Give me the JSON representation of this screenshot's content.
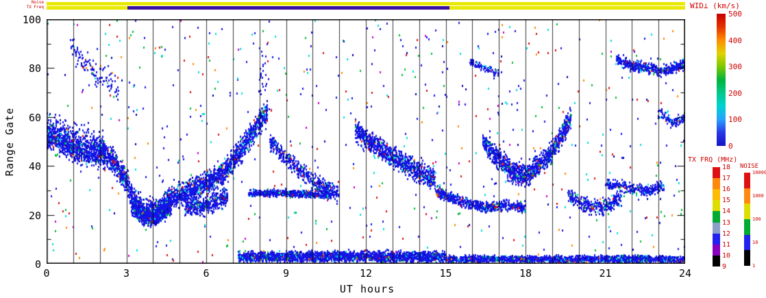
{
  "chart_data": {
    "type": "scatter",
    "title": "",
    "xlabel": "UT hours",
    "ylabel": "Range Gate",
    "xlim": [
      0,
      24
    ],
    "ylim": [
      0,
      100
    ],
    "x_ticks": [
      "0",
      "3",
      "6",
      "9",
      "12",
      "15",
      "18",
      "21",
      "24"
    ],
    "x_minor_gridline_every_hours": 1,
    "y_ticks": [
      "0",
      "20",
      "40",
      "60",
      "80",
      "100"
    ],
    "gridlines": "vertical black line at every UT hour, full plot height",
    "strips": {
      "noise_label": "Noise",
      "txfreq_label": "TX Freq",
      "noise_segments": [
        {
          "from": 0,
          "to": 24,
          "color": "#e8e800"
        }
      ],
      "txfreq_segments": [
        {
          "from": 0,
          "to": 3.05,
          "color": "#e8e800"
        },
        {
          "from": 3.05,
          "to": 15.15,
          "color": "#3a10a0"
        },
        {
          "from": 15.15,
          "to": 24,
          "color": "#e8e800"
        }
      ]
    },
    "colorbars": {
      "wid": {
        "title": "WID⊥ (km/s)",
        "ticks_top_to_bottom": [
          "500",
          "400",
          "300",
          "200",
          "100",
          "0"
        ],
        "gradient_top_to_bottom": [
          "#c80000",
          "#e43200",
          "#ff8c00",
          "#e1d200",
          "#7dc800",
          "#00b43c",
          "#00c88c",
          "#00d2d2",
          "#28a0ff",
          "#2837e6",
          "#1414c8"
        ]
      },
      "txfrq": {
        "title": "TX FRQ (MHz)",
        "ticks_top_to_bottom": [
          "18",
          "17",
          "16",
          "15",
          "14",
          "13",
          "12",
          "11",
          "10",
          "9"
        ],
        "segments_top_to_bottom": [
          "#dd1111",
          "#ff8811",
          "#ffbb00",
          "#dddd00",
          "#00aa33",
          "#8aa0c8",
          "#2222ee",
          "#8800bb",
          "#000000"
        ]
      },
      "noise": {
        "title": "NOISE",
        "ticks_top_to_bottom": [
          "10000",
          "1000",
          "100",
          "10",
          "1"
        ],
        "segments_top_to_bottom": [
          "#dd1111",
          "#ff8811",
          "#dddd00",
          "#00aa33",
          "#2222ee",
          "#000000"
        ]
      }
    },
    "point_color_weights": {
      "band": [
        {
          "color": "#1515e6",
          "w": 0.84
        },
        {
          "color": "#0000aa",
          "w": 0.05
        },
        {
          "color": "#00dddd",
          "w": 0.05
        },
        {
          "color": "#00bb33",
          "w": 0.03
        },
        {
          "color": "#dd1111",
          "w": 0.02
        },
        {
          "color": "#ff8800",
          "w": 0.01
        }
      ],
      "noise": [
        {
          "color": "#1515e6",
          "w": 0.38
        },
        {
          "color": "#00dddd",
          "w": 0.17
        },
        {
          "color": "#00bb33",
          "w": 0.13
        },
        {
          "color": "#dd1111",
          "w": 0.13
        },
        {
          "color": "#ff8800",
          "w": 0.07
        },
        {
          "color": "#0000aa",
          "w": 0.07
        },
        {
          "color": "#cc00cc",
          "w": 0.05
        }
      ]
    },
    "bands": [
      {
        "id": "early-wave",
        "points": [
          [
            0.0,
            52
          ],
          [
            0.5,
            50
          ],
          [
            1.0,
            47
          ],
          [
            1.5,
            45
          ],
          [
            2.0,
            46
          ],
          [
            2.5,
            42
          ],
          [
            3.0,
            34
          ],
          [
            3.3,
            26
          ],
          [
            3.7,
            21
          ],
          [
            4.2,
            22
          ],
          [
            4.7,
            27
          ],
          [
            5.2,
            29
          ],
          [
            5.7,
            31
          ],
          [
            6.2,
            34
          ],
          [
            6.7,
            38
          ],
          [
            7.2,
            45
          ],
          [
            7.7,
            53
          ],
          [
            8.1,
            59
          ],
          [
            8.3,
            62
          ]
        ],
        "half_width": 7,
        "density": 30
      },
      {
        "id": "early-thick",
        "points": [
          [
            0.0,
            55
          ],
          [
            0.7,
            52
          ],
          [
            1.5,
            49
          ],
          [
            2.2,
            46
          ]
        ],
        "half_width": 10,
        "density": 14
      },
      {
        "id": "dip-blob-4h",
        "points": [
          [
            3.2,
            24
          ],
          [
            3.6,
            20
          ],
          [
            4.0,
            19
          ],
          [
            4.4,
            21
          ],
          [
            4.7,
            24
          ]
        ],
        "half_width": 5,
        "density": 42
      },
      {
        "id": "low-blob-6h",
        "points": [
          [
            5.2,
            24
          ],
          [
            5.8,
            23
          ],
          [
            6.3,
            25
          ],
          [
            6.8,
            28
          ]
        ],
        "half_width": 5,
        "density": 22
      },
      {
        "id": "high-early",
        "points": [
          [
            0.9,
            90
          ],
          [
            1.5,
            81
          ],
          [
            2.1,
            76
          ],
          [
            2.7,
            72
          ]
        ],
        "half_width": 7,
        "density": 5
      },
      {
        "id": "column-8h",
        "points": [
          [
            8.0,
            75
          ],
          [
            8.3,
            80
          ]
        ],
        "half_width": 18,
        "density": 6
      },
      {
        "id": "desc-9h",
        "points": [
          [
            8.4,
            50
          ],
          [
            9.0,
            43
          ],
          [
            9.5,
            39
          ],
          [
            10.0,
            34
          ],
          [
            10.5,
            31
          ],
          [
            11.0,
            28
          ]
        ],
        "half_width": 5,
        "density": 15
      },
      {
        "id": "flat-28",
        "points": [
          [
            7.6,
            29
          ],
          [
            9.0,
            29
          ],
          [
            10.7,
            28
          ]
        ],
        "half_width": 2,
        "density": 18
      },
      {
        "id": "bottom-mid",
        "points": [
          [
            7.2,
            3
          ],
          [
            11.0,
            3
          ],
          [
            15.0,
            3
          ]
        ],
        "half_width": 3,
        "density": 26
      },
      {
        "id": "bottom-late",
        "points": [
          [
            15.0,
            2
          ],
          [
            20.0,
            2
          ],
          [
            24.0,
            2
          ]
        ],
        "half_width": 2,
        "density": 16
      },
      {
        "id": "desc-13h",
        "points": [
          [
            11.6,
            55
          ],
          [
            12.1,
            50
          ],
          [
            12.6,
            47
          ],
          [
            13.1,
            43
          ],
          [
            13.6,
            40
          ],
          [
            14.1,
            37
          ],
          [
            14.6,
            34
          ]
        ],
        "half_width": 6,
        "density": 26
      },
      {
        "id": "mid-16h",
        "points": [
          [
            14.6,
            30
          ],
          [
            15.2,
            27
          ],
          [
            15.8,
            25
          ],
          [
            16.5,
            23
          ],
          [
            17.2,
            24
          ],
          [
            18.0,
            23
          ]
        ],
        "half_width": 3,
        "density": 15
      },
      {
        "id": "vee-18h",
        "points": [
          [
            16.4,
            50
          ],
          [
            17.0,
            43
          ],
          [
            17.5,
            38
          ],
          [
            18.0,
            36
          ],
          [
            18.5,
            40
          ],
          [
            19.0,
            46
          ],
          [
            19.4,
            53
          ],
          [
            19.7,
            60
          ]
        ],
        "half_width": 6,
        "density": 28
      },
      {
        "id": "low-20h",
        "points": [
          [
            19.6,
            28
          ],
          [
            20.1,
            25
          ],
          [
            20.6,
            23
          ],
          [
            21.1,
            24
          ],
          [
            21.6,
            27
          ]
        ],
        "half_width": 4,
        "density": 13
      },
      {
        "id": "flat-22h",
        "points": [
          [
            21.0,
            33
          ],
          [
            22.0,
            31
          ],
          [
            22.6,
            30
          ],
          [
            23.2,
            32
          ]
        ],
        "half_width": 3,
        "density": 11
      },
      {
        "id": "high-22h",
        "points": [
          [
            21.4,
            84
          ],
          [
            22.0,
            81
          ],
          [
            22.6,
            80
          ],
          [
            23.1,
            79
          ],
          [
            23.6,
            80
          ],
          [
            24.0,
            82
          ]
        ],
        "half_width": 3,
        "density": 16
      },
      {
        "id": "high-16h",
        "points": [
          [
            15.9,
            83
          ],
          [
            16.5,
            80
          ],
          [
            17.0,
            78
          ]
        ],
        "half_width": 2,
        "density": 7
      },
      {
        "id": "end-60",
        "points": [
          [
            23.0,
            62
          ],
          [
            23.6,
            58
          ],
          [
            24.0,
            60
          ]
        ],
        "half_width": 3,
        "density": 9
      }
    ],
    "noise_scatter": {
      "count": 700
    }
  }
}
